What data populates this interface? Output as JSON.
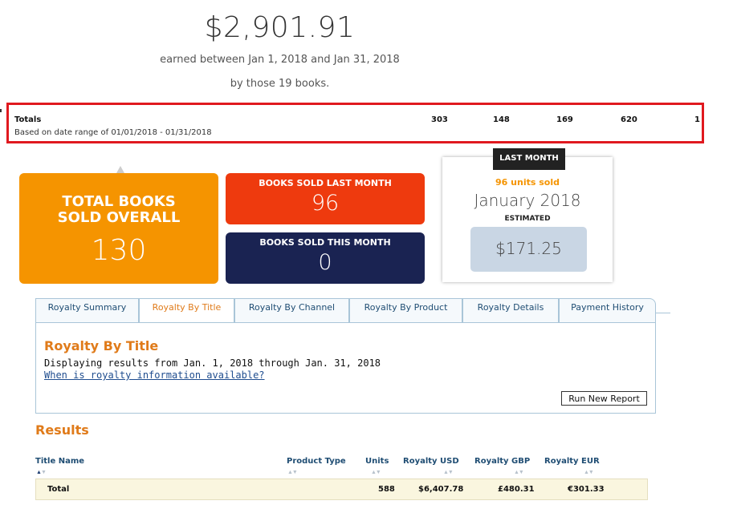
{
  "header": {
    "amount": "$2,901.91",
    "earned_text": "earned between Jan 1, 2018 and Jan 31, 2018",
    "by_text": "by those 19 books."
  },
  "totals_bar": {
    "label": "Totals",
    "date_range": "Based on date range of 01/01/2018 - 01/31/2018",
    "values": [
      "303",
      "148",
      "169",
      "620",
      "1"
    ],
    "highlight_color": "#e0191f"
  },
  "cards": {
    "total_overall": {
      "title": "TOTAL BOOKS SOLD OVERALL",
      "value": "130",
      "color": "#f59400"
    },
    "last_month": {
      "title": "BOOKS SOLD LAST MONTH",
      "value": "96",
      "color": "#ee3a0e"
    },
    "this_month": {
      "title": "BOOKS SOLD THIS MONTH",
      "value": "0",
      "color": "#1a2352"
    }
  },
  "last_month_card": {
    "tag": "LAST MONTH",
    "units": "96 units sold",
    "month": "January 2018",
    "estimated_label": "ESTIMATED",
    "amount": "$171.25"
  },
  "tabs": [
    {
      "label": "Royalty Summary",
      "active": false
    },
    {
      "label": "Royalty By Title",
      "active": true
    },
    {
      "label": "Royalty By Channel",
      "active": false
    },
    {
      "label": "Royalty By Product",
      "active": false
    },
    {
      "label": "Royalty Details",
      "active": false
    },
    {
      "label": "Payment History",
      "active": false
    }
  ],
  "panel": {
    "title": "Royalty By Title",
    "displaying": "Displaying results from Jan. 1, 2018 through Jan. 31, 2018",
    "link": "When is royalty information available?",
    "run_button": "Run New Report"
  },
  "results": {
    "title": "Results",
    "columns": [
      "Title Name",
      "Product Type",
      "Units",
      "Royalty USD",
      "Royalty GBP",
      "Royalty EUR"
    ],
    "total_row": {
      "label": "Total",
      "product_type": "",
      "units": "588",
      "royalty_usd": "$6,407.78",
      "royalty_gbp": "£480.31",
      "royalty_eur": "€301.33"
    }
  },
  "icons": {
    "sort_asc": "sort-ascending-icon",
    "sort_both": "sort-arrows-icon"
  }
}
